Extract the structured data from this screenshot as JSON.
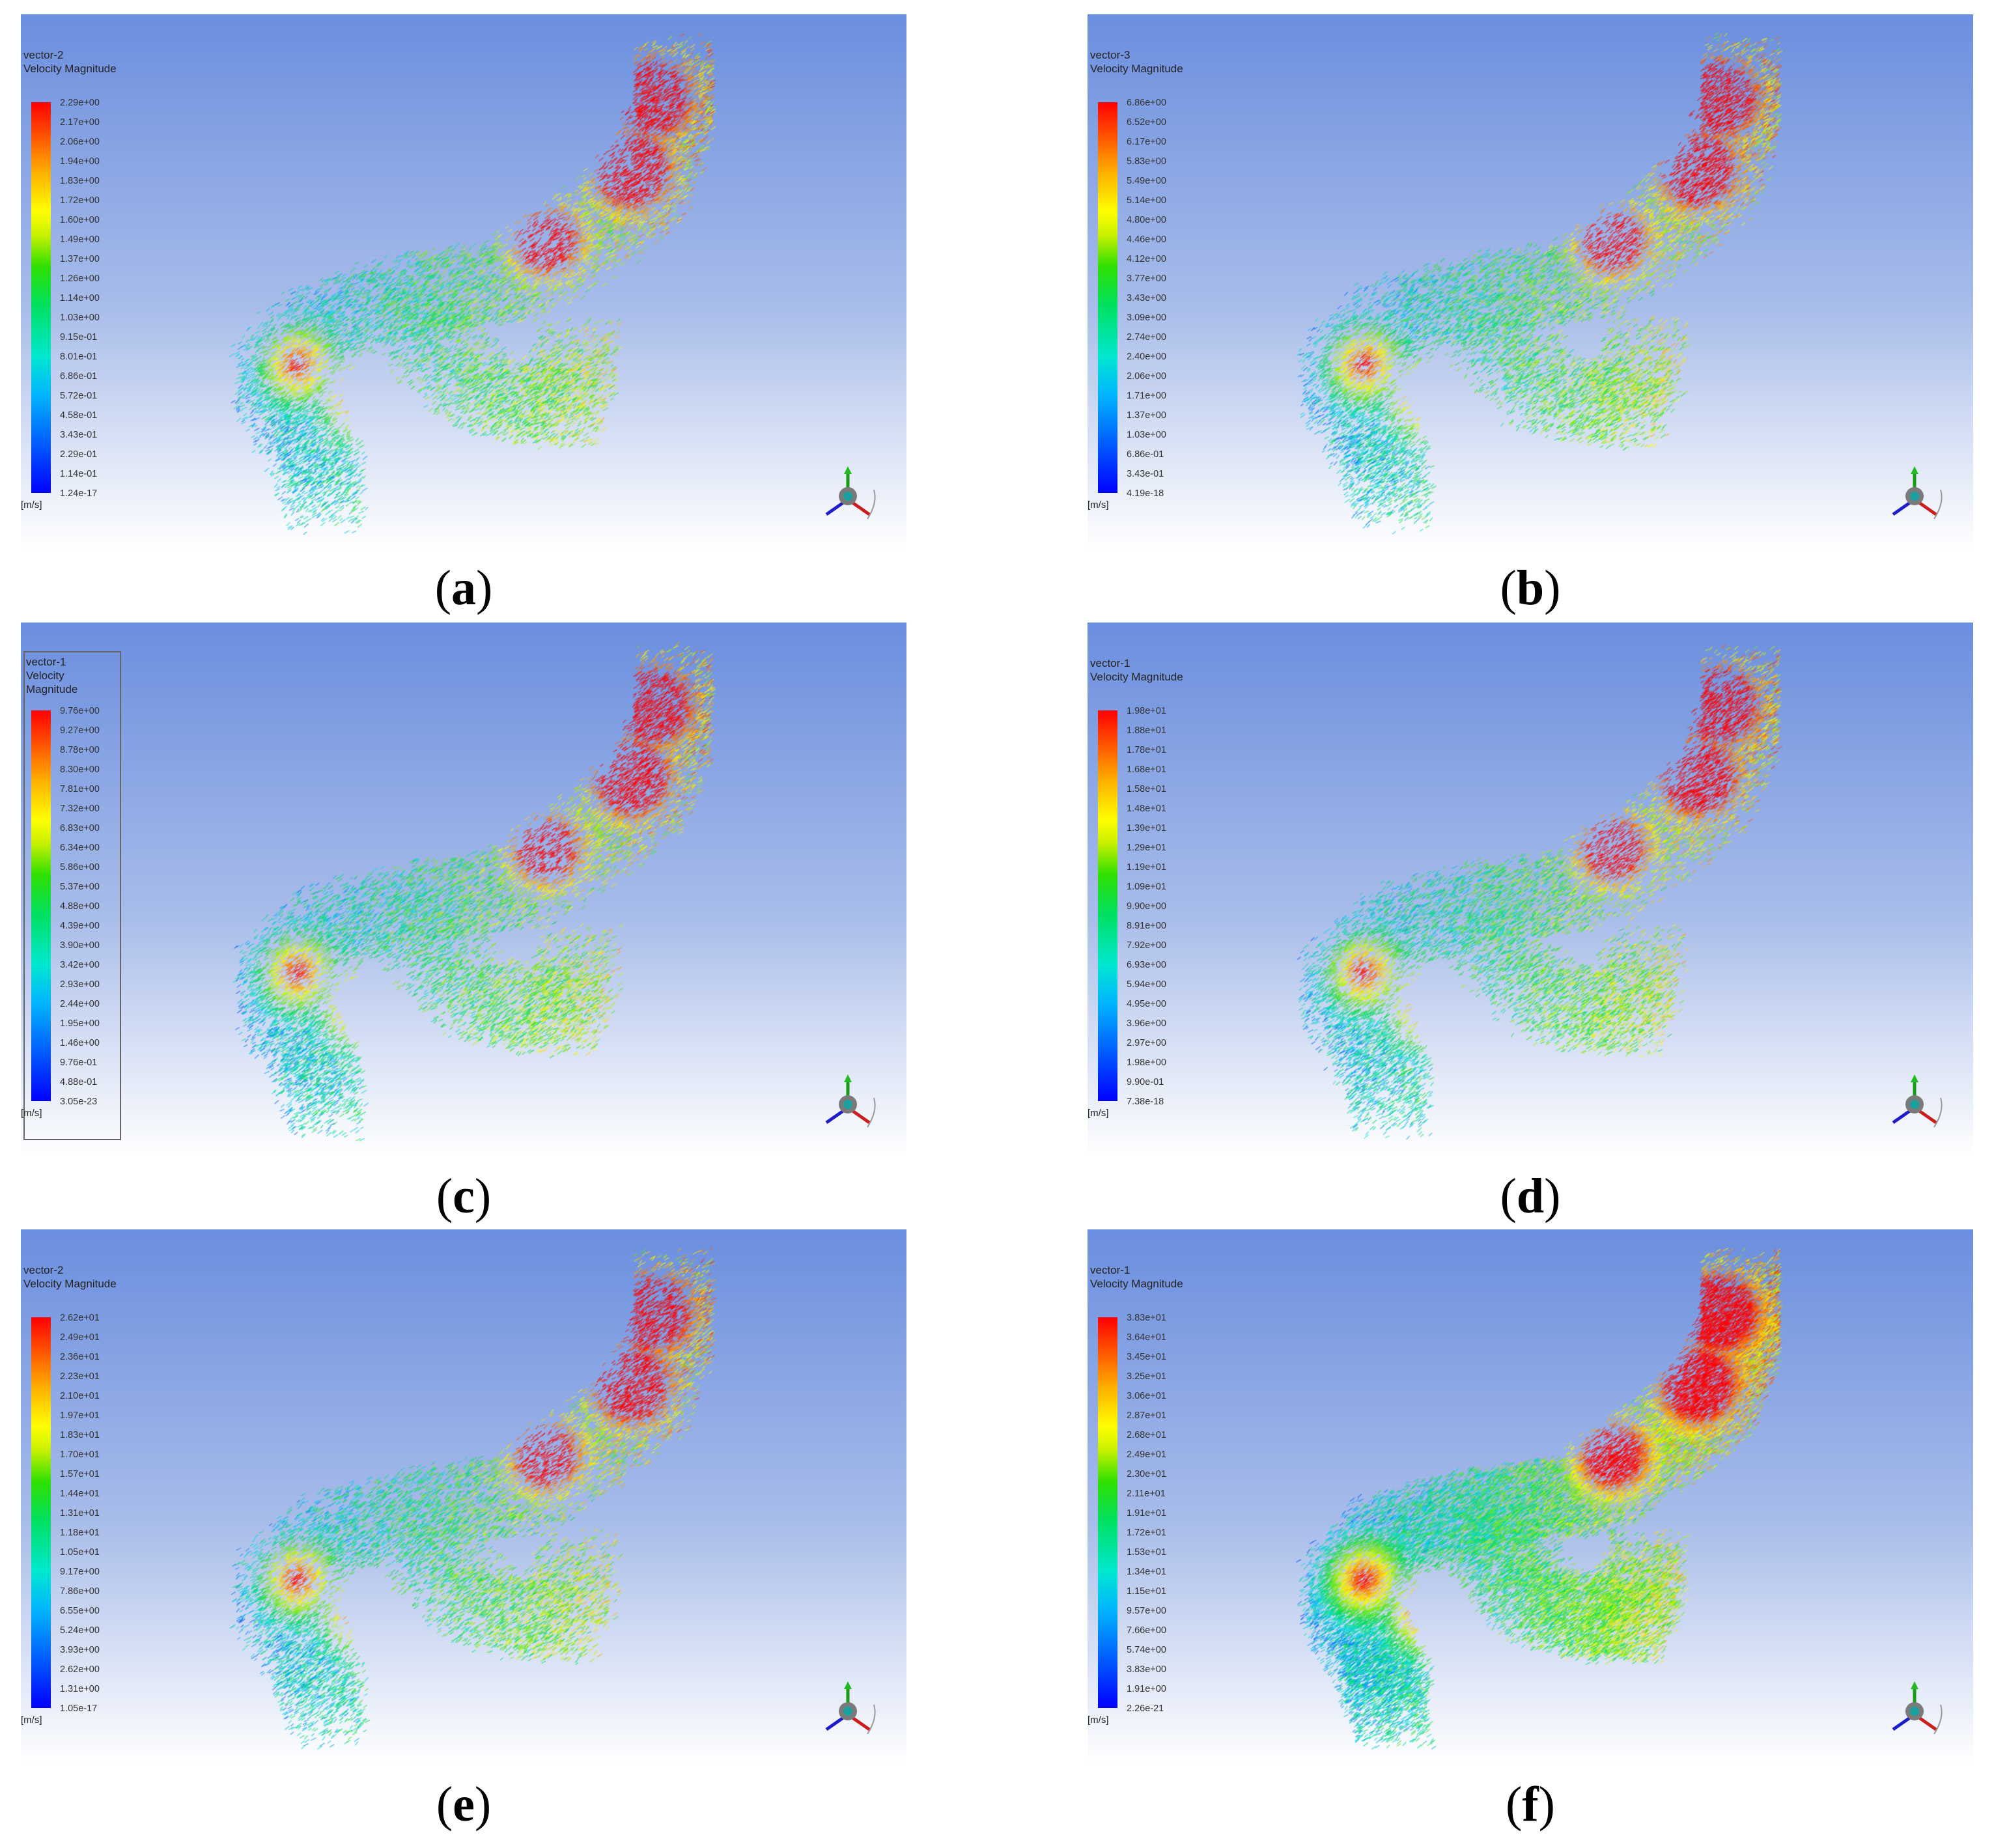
{
  "colors": {
    "background_top": "#6b8fdf",
    "background_bottom": "#ffffff",
    "legend_min": "#0000ff",
    "legend_max": "#ff0000"
  },
  "panels": [
    {
      "label": "a",
      "title": "vector-2",
      "subtitle": "Velocity Magnitude",
      "unit": "[m/s]",
      "ticks": [
        "2.29e+00",
        "2.17e+00",
        "2.06e+00",
        "1.94e+00",
        "1.83e+00",
        "1.72e+00",
        "1.60e+00",
        "1.49e+00",
        "1.37e+00",
        "1.26e+00",
        "1.14e+00",
        "1.03e+00",
        "9.15e-01",
        "8.01e-01",
        "6.86e-01",
        "5.72e-01",
        "4.58e-01",
        "3.43e-01",
        "2.29e-01",
        "1.14e-01",
        "1.24e-17"
      ]
    },
    {
      "label": "b",
      "title": "vector-3",
      "subtitle": "Velocity Magnitude",
      "unit": "[m/s]",
      "ticks": [
        "6.86e+00",
        "6.52e+00",
        "6.17e+00",
        "5.83e+00",
        "5.49e+00",
        "5.14e+00",
        "4.80e+00",
        "4.46e+00",
        "4.12e+00",
        "3.77e+00",
        "3.43e+00",
        "3.09e+00",
        "2.74e+00",
        "2.40e+00",
        "2.06e+00",
        "1.71e+00",
        "1.37e+00",
        "1.03e+00",
        "6.86e-01",
        "3.43e-01",
        "4.19e-18"
      ]
    },
    {
      "label": "c",
      "title": "vector-1",
      "subtitle": "Velocity Magnitude",
      "unit": "[m/s]",
      "ticks": [
        "9.76e+00",
        "9.27e+00",
        "8.78e+00",
        "8.30e+00",
        "7.81e+00",
        "7.32e+00",
        "6.83e+00",
        "6.34e+00",
        "5.86e+00",
        "5.37e+00",
        "4.88e+00",
        "4.39e+00",
        "3.90e+00",
        "3.42e+00",
        "2.93e+00",
        "2.44e+00",
        "1.95e+00",
        "1.46e+00",
        "9.76e-01",
        "4.88e-01",
        "3.05e-23"
      ]
    },
    {
      "label": "d",
      "title": "vector-1",
      "subtitle": "Velocity Magnitude",
      "unit": "[m/s]",
      "ticks": [
        "1.98e+01",
        "1.88e+01",
        "1.78e+01",
        "1.68e+01",
        "1.58e+01",
        "1.48e+01",
        "1.39e+01",
        "1.29e+01",
        "1.19e+01",
        "1.09e+01",
        "9.90e+00",
        "8.91e+00",
        "7.92e+00",
        "6.93e+00",
        "5.94e+00",
        "4.95e+00",
        "3.96e+00",
        "2.97e+00",
        "1.98e+00",
        "9.90e-01",
        "7.38e-18"
      ]
    },
    {
      "label": "e",
      "title": "vector-2",
      "subtitle": "Velocity Magnitude",
      "unit": "[m/s]",
      "ticks": [
        "2.62e+01",
        "2.49e+01",
        "2.36e+01",
        "2.23e+01",
        "2.10e+01",
        "1.97e+01",
        "1.83e+01",
        "1.70e+01",
        "1.57e+01",
        "1.44e+01",
        "1.31e+01",
        "1.18e+01",
        "1.05e+01",
        "9.17e+00",
        "7.86e+00",
        "6.55e+00",
        "5.24e+00",
        "3.93e+00",
        "2.62e+00",
        "1.31e+00",
        "1.05e-17"
      ]
    },
    {
      "label": "f",
      "title": "vector-1",
      "subtitle": "Velocity Magnitude",
      "unit": "[m/s]",
      "ticks": [
        "3.83e+01",
        "3.64e+01",
        "3.45e+01",
        "3.25e+01",
        "3.06e+01",
        "2.87e+01",
        "2.68e+01",
        "2.49e+01",
        "2.30e+01",
        "2.11e+01",
        "1.91e+01",
        "1.72e+01",
        "1.53e+01",
        "1.34e+01",
        "1.15e+01",
        "9.57e+00",
        "7.66e+00",
        "5.74e+00",
        "3.83e+00",
        "1.91e+00",
        "2.26e-21"
      ]
    }
  ]
}
